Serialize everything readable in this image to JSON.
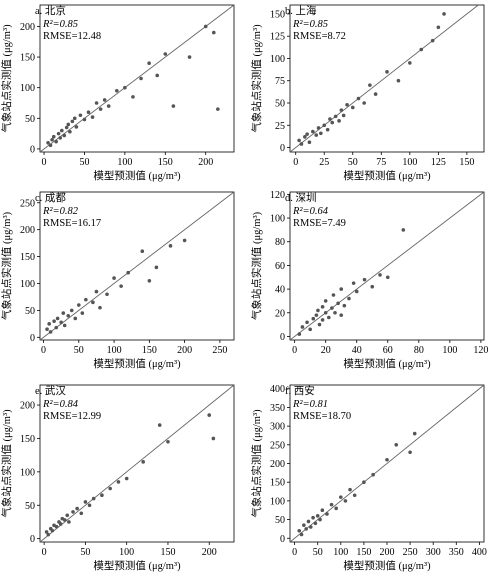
{
  "chart_data": [
    {
      "type": "scatter",
      "title": "a. 北京",
      "r2": "R²=0.85",
      "rmse": "RMSE=12.48",
      "x_label": "模型预测值 (μg/m³)",
      "y_label": "气象站点实测值 (μg/m³)",
      "color": "#555555",
      "identity_line": true,
      "x": [
        5,
        8,
        10,
        12,
        15,
        18,
        20,
        22,
        25,
        28,
        30,
        32,
        35,
        38,
        40,
        45,
        50,
        55,
        60,
        65,
        70,
        75,
        80,
        90,
        100,
        110,
        120,
        130,
        140,
        150,
        160,
        180,
        200,
        210,
        215
      ],
      "values": [
        10,
        6,
        15,
        20,
        12,
        25,
        18,
        30,
        22,
        35,
        40,
        28,
        45,
        50,
        36,
        55,
        48,
        60,
        52,
        75,
        65,
        80,
        70,
        95,
        100,
        85,
        115,
        140,
        120,
        155,
        70,
        150,
        200,
        190,
        65
      ],
      "xlim": [
        -5,
        235
      ],
      "ylim": [
        -5,
        235
      ],
      "xticks": [
        0,
        50,
        100,
        150,
        200
      ],
      "yticks": [
        0,
        50,
        100,
        150,
        200
      ]
    },
    {
      "type": "scatter",
      "title": "b. 上海",
      "r2": "R²=0.85",
      "rmse": "RMSE=8.72",
      "x_label": "模型预测值 (μg/m³)",
      "y_label": "气象站点实测值 (μg/m³)",
      "color": "#555555",
      "identity_line": true,
      "x": [
        3,
        5,
        8,
        10,
        12,
        15,
        18,
        20,
        22,
        25,
        28,
        30,
        32,
        35,
        38,
        40,
        42,
        45,
        50,
        55,
        60,
        65,
        70,
        80,
        90,
        100,
        110,
        120,
        125,
        130
      ],
      "values": [
        8,
        4,
        12,
        15,
        6,
        18,
        14,
        22,
        16,
        25,
        20,
        32,
        28,
        35,
        30,
        42,
        36,
        48,
        45,
        55,
        50,
        70,
        60,
        85,
        75,
        95,
        110,
        120,
        135,
        150
      ],
      "xlim": [
        -5,
        165
      ],
      "ylim": [
        -5,
        160
      ],
      "xticks": [
        0,
        25,
        50,
        75,
        100,
        125,
        150
      ],
      "yticks": [
        0,
        25,
        50,
        75,
        100,
        125,
        150
      ]
    },
    {
      "type": "scatter",
      "title": "c. 成都",
      "r2": "R²=0.82",
      "rmse": "RMSE=16.17",
      "x_label": "模型预测值 (μg/m³)",
      "y_label": "气象站点实测值 (μg/m³)",
      "color": "#555555",
      "identity_line": true,
      "x": [
        5,
        8,
        10,
        15,
        18,
        20,
        25,
        28,
        30,
        35,
        40,
        45,
        50,
        55,
        60,
        70,
        75,
        80,
        90,
        100,
        110,
        120,
        140,
        150,
        160,
        180,
        200
      ],
      "values": [
        15,
        25,
        10,
        30,
        18,
        35,
        28,
        45,
        22,
        40,
        50,
        35,
        60,
        45,
        70,
        65,
        85,
        55,
        80,
        110,
        95,
        120,
        160,
        105,
        130,
        170,
        180
      ],
      "xlim": [
        -5,
        270
      ],
      "ylim": [
        -5,
        270
      ],
      "xticks": [
        0,
        50,
        100,
        150,
        200,
        250
      ],
      "yticks": [
        0,
        50,
        100,
        150,
        200,
        250
      ]
    },
    {
      "type": "scatter",
      "title": "d. 深圳",
      "r2": "R²=0.64",
      "rmse": "RMSE=7.49",
      "x_label": "模型预测值 (μg/m³)",
      "y_label": "气象站点实测值 (μg/m³)",
      "color": "#555555",
      "identity_line": true,
      "x": [
        3,
        5,
        8,
        10,
        12,
        14,
        15,
        16,
        18,
        18,
        20,
        20,
        22,
        24,
        25,
        26,
        28,
        30,
        30,
        32,
        35,
        38,
        40,
        45,
        50,
        55,
        60,
        70
      ],
      "values": [
        2,
        8,
        12,
        6,
        15,
        18,
        22,
        10,
        25,
        14,
        20,
        30,
        16,
        24,
        35,
        20,
        28,
        18,
        40,
        26,
        32,
        45,
        38,
        48,
        42,
        52,
        50,
        90
      ],
      "xlim": [
        -3,
        122
      ],
      "ylim": [
        -3,
        122
      ],
      "xticks": [
        0,
        20,
        40,
        60,
        80,
        100,
        120
      ],
      "yticks": [
        0,
        20,
        40,
        60,
        80,
        100,
        120
      ]
    },
    {
      "type": "scatter",
      "title": "e. 武汉",
      "r2": "R²=0.84",
      "rmse": "RMSE=12.99",
      "x_label": "模型预测值 (μg/m³)",
      "y_label": "气象站点实测值 (μg/m³)",
      "color": "#555555",
      "identity_line": true,
      "x": [
        3,
        5,
        8,
        10,
        12,
        15,
        18,
        20,
        22,
        25,
        28,
        30,
        35,
        40,
        45,
        50,
        55,
        60,
        70,
        80,
        90,
        100,
        120,
        140,
        150,
        200,
        205
      ],
      "values": [
        10,
        6,
        15,
        12,
        20,
        18,
        25,
        22,
        30,
        28,
        35,
        25,
        40,
        45,
        38,
        55,
        50,
        60,
        65,
        75,
        85,
        90,
        115,
        170,
        145,
        185,
        150
      ],
      "xlim": [
        -5,
        230
      ],
      "ylim": [
        -5,
        230
      ],
      "xticks": [
        0,
        50,
        100,
        150,
        200
      ],
      "yticks": [
        0,
        50,
        100,
        150,
        200
      ]
    },
    {
      "type": "scatter",
      "title": "f. 西安",
      "r2": "R²=0.81",
      "rmse": "RMSE=18.70",
      "x_label": "模型预测值 (μg/m³)",
      "y_label": "气象站点实测值 (μg/m³)",
      "color": "#555555",
      "identity_line": true,
      "x": [
        10,
        15,
        20,
        25,
        30,
        35,
        40,
        45,
        50,
        55,
        60,
        70,
        80,
        90,
        100,
        110,
        120,
        130,
        150,
        170,
        200,
        220,
        250,
        260
      ],
      "values": [
        20,
        10,
        35,
        25,
        45,
        30,
        55,
        40,
        60,
        50,
        75,
        65,
        90,
        80,
        110,
        100,
        130,
        115,
        150,
        170,
        210,
        250,
        230,
        280
      ],
      "xlim": [
        -10,
        410
      ],
      "ylim": [
        -10,
        410
      ],
      "xticks": [
        0,
        50,
        100,
        150,
        200,
        250,
        300,
        350,
        400
      ],
      "yticks": [
        0,
        50,
        100,
        150,
        200,
        250,
        300,
        350,
        400
      ]
    }
  ]
}
